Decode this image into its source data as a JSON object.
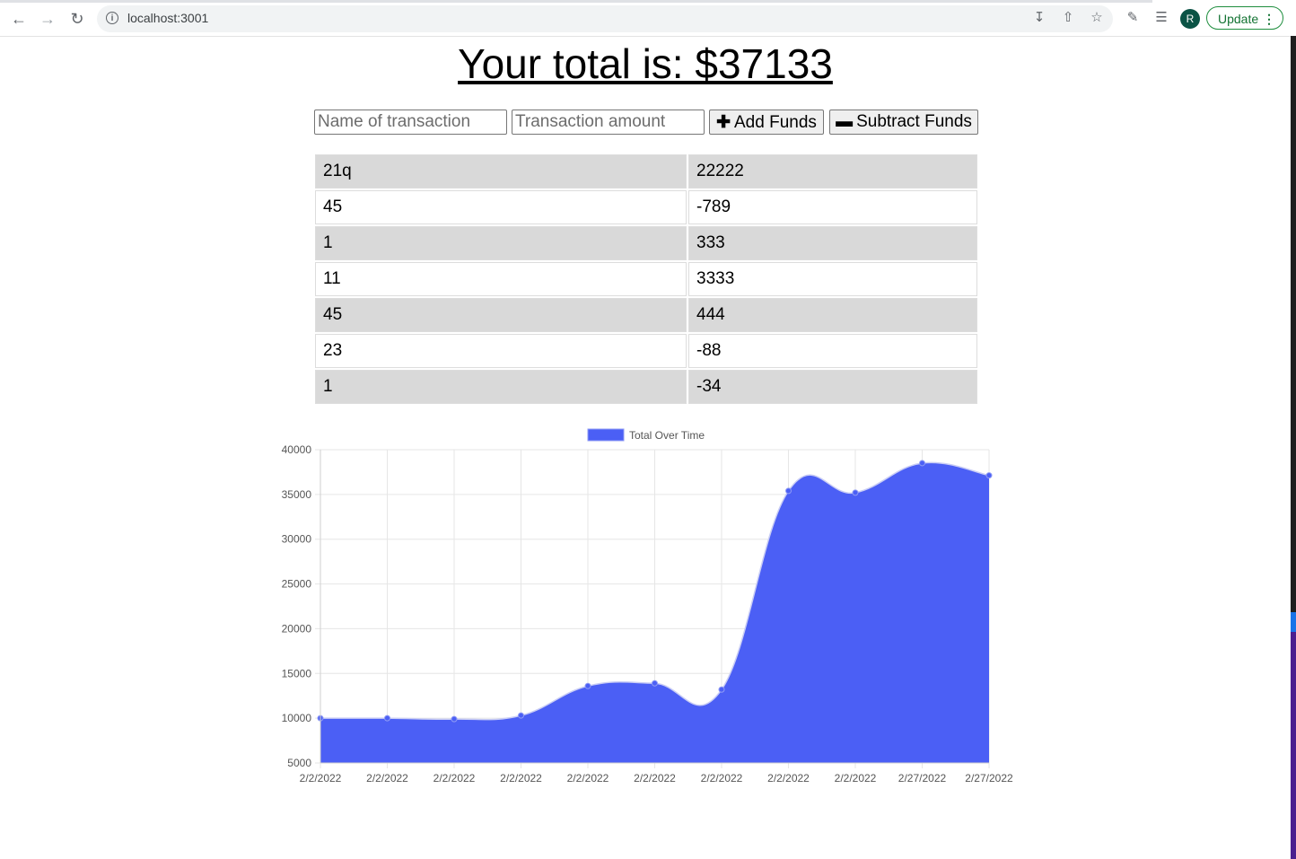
{
  "browser": {
    "url": "localhost:3001",
    "avatar_letter": "R",
    "update_label": "Update"
  },
  "page": {
    "total_text": "Your total is: $37133",
    "name_placeholder": "Name of transaction",
    "amount_placeholder": "Transaction amount",
    "add_label": "Add Funds",
    "subtract_label": "Subtract Funds"
  },
  "transactions": [
    {
      "name": "21q",
      "amount": "22222"
    },
    {
      "name": "45",
      "amount": "-789"
    },
    {
      "name": "1",
      "amount": "333"
    },
    {
      "name": "11",
      "amount": "3333"
    },
    {
      "name": "45",
      "amount": "444"
    },
    {
      "name": "23",
      "amount": "-88"
    },
    {
      "name": "1",
      "amount": "-34"
    }
  ],
  "chart_data": {
    "type": "area",
    "title": "",
    "xlabel": "",
    "ylabel": "",
    "legend_position": "top",
    "grid": true,
    "ylim": [
      5000,
      40000
    ],
    "yticks": [
      40000,
      35000,
      30000,
      25000,
      20000,
      15000,
      10000,
      5000
    ],
    "x": [
      "2/2/2022",
      "2/2/2022",
      "2/2/2022",
      "2/2/2022",
      "2/2/2022",
      "2/2/2022",
      "2/2/2022",
      "2/2/2022",
      "2/2/2022",
      "2/27/2022",
      "2/27/2022"
    ],
    "series": [
      {
        "name": "Total Over Time",
        "color": "#4b5ff5",
        "values": [
          10000,
          10000,
          9900,
          10300,
          13600,
          13900,
          13200,
          35400,
          35200,
          38500,
          37133
        ]
      }
    ]
  }
}
